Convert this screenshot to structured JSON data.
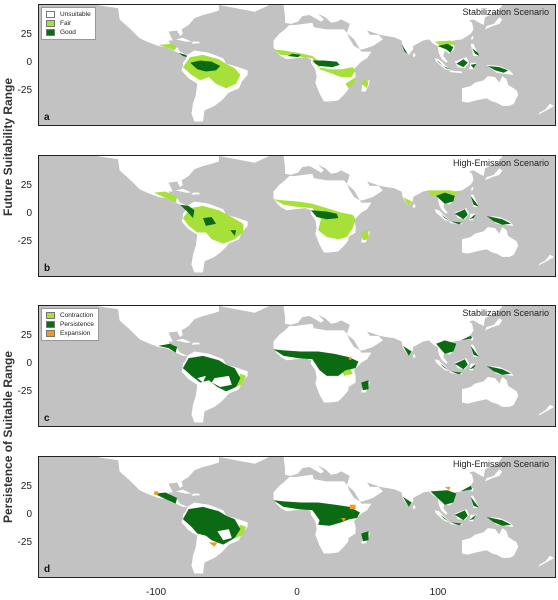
{
  "y_labels": {
    "top": "Future Suitability Range",
    "bottom": "Persistence of Suitable Range"
  },
  "colors": {
    "ocean": "#c2c2c2",
    "land": "#ffffff",
    "fair": "#a8e03a",
    "good": "#0b6b12",
    "contraction": "#a8e03a",
    "persistence": "#0b6b12",
    "expansion": "#ef9a1a"
  },
  "legend_suitability": [
    {
      "label": "Unsuitable",
      "color": "#ffffff"
    },
    {
      "label": "Fair",
      "color": "#a8e03a"
    },
    {
      "label": "Good",
      "color": "#0b6b12"
    }
  ],
  "legend_persistence": [
    {
      "label": "Contraction",
      "color": "#a8e03a"
    },
    {
      "label": "Persistence",
      "color": "#0b6b12"
    },
    {
      "label": "Expansion",
      "color": "#ef9a1a"
    }
  ],
  "panels": [
    {
      "letter": "a",
      "scenario": "Stabilization Scenario"
    },
    {
      "letter": "b",
      "scenario": "High-Emission Scenario"
    },
    {
      "letter": "c",
      "scenario": "Stabilization Scenario"
    },
    {
      "letter": "d",
      "scenario": "High-Emission Scenario"
    }
  ],
  "y_ticks": [
    "25",
    "0",
    "-25"
  ],
  "x_ticks": [
    "-100",
    "0",
    "100"
  ]
}
